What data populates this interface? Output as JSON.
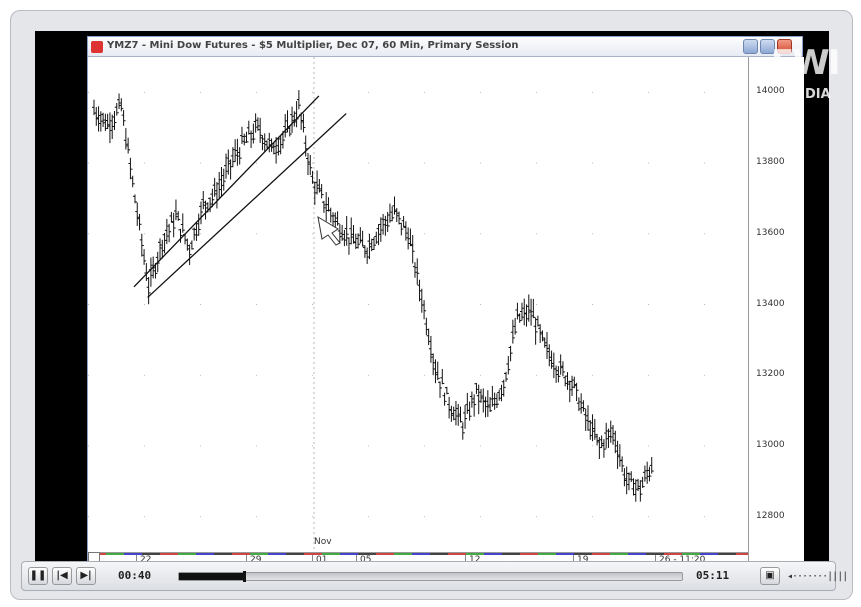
{
  "window": {
    "title": "YMZ7 - Mini Dow Futures - $5 Multiplier, Dec 07, 60 Min, Primary Session"
  },
  "logo": {
    "main": "EWI",
    "sub": "DIA"
  },
  "chart_data": {
    "type": "ohlc",
    "title": "YMZ7 - Mini Dow Futures - $5 Multiplier, Dec 07, 60 Min, Primary Session",
    "ylim": [
      12700,
      14100
    ],
    "yticks": [
      12800,
      13000,
      13200,
      13400,
      13600,
      13800,
      14000
    ],
    "ytick_labels": [
      "12800",
      "13000",
      "13200",
      "13400",
      "13600",
      "13800",
      "14000"
    ],
    "x_labels": [
      "22",
      "29",
      "01",
      "05",
      "12",
      "19",
      "26 - 11:20"
    ],
    "month_label": "Nov",
    "grid": "dotted",
    "series": [
      {
        "values": [
          13950,
          13910,
          13960,
          13700,
          13450,
          13580,
          13650,
          13560,
          13680,
          13720,
          13800,
          13860,
          13900,
          13840,
          13880,
          13960,
          13750,
          13680,
          13620,
          13580,
          13560,
          13620,
          13660,
          13600,
          13420,
          13220,
          13120,
          13060,
          13150,
          13100,
          13180,
          13360,
          13380,
          13280,
          13220,
          13180,
          13080,
          13000,
          13040,
          12900,
          12880,
          12960
        ]
      }
    ],
    "channel_lines": [
      {
        "from": [
          0,
          13450
        ],
        "to": [
          15,
          13990
        ]
      },
      {
        "from": [
          1,
          13420
        ],
        "to": [
          17,
          13940
        ]
      }
    ]
  },
  "player": {
    "current_time": "00:40",
    "total_time": "05:11",
    "progress": 0.129,
    "volume_label": "◂·······||||",
    "pause_icon": "pause-icon",
    "prev_icon": "skip-back-icon",
    "next_icon": "skip-forward-icon",
    "fullscreen_icon": "fullscreen-icon"
  },
  "colors": {
    "accent_close": "#d04a30",
    "price_bar": "#111111",
    "back_arrow": "#d21111"
  }
}
